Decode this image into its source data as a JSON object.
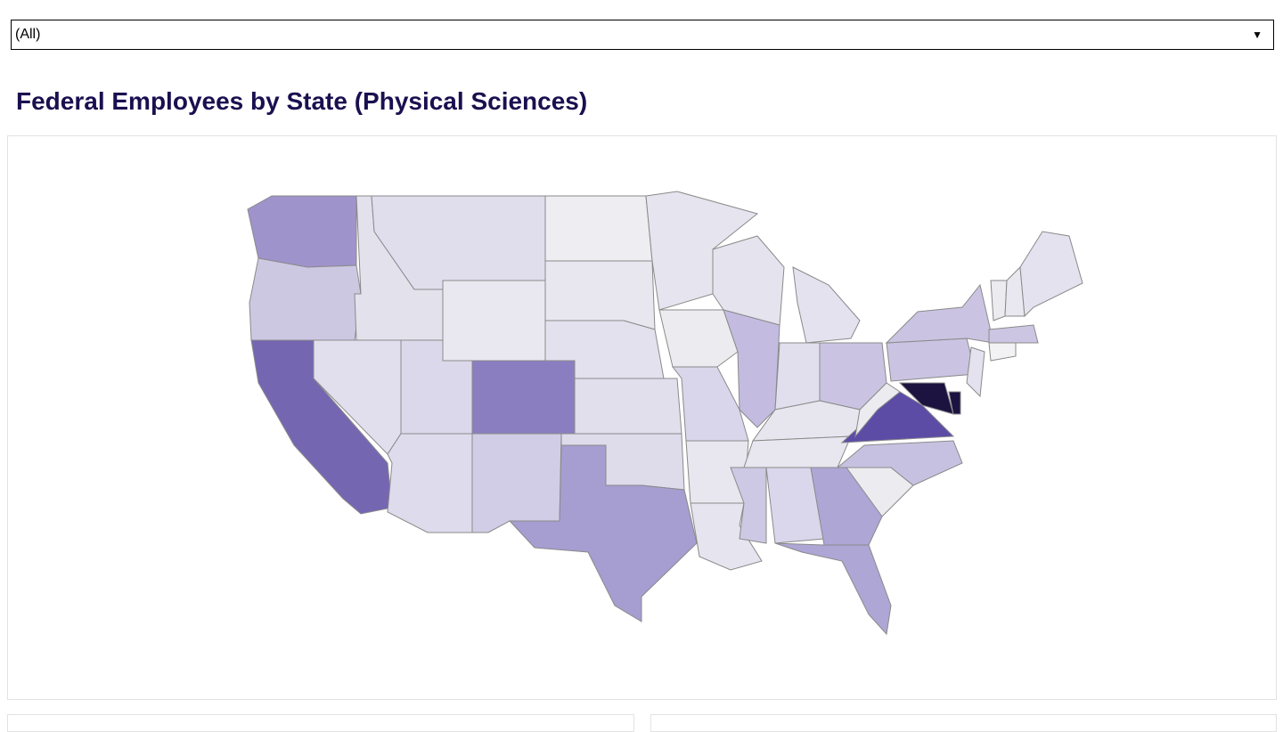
{
  "filter": {
    "selected": "(All)"
  },
  "map_panel": {
    "title": "Federal Employees by State (Physical Sciences)"
  }
}
